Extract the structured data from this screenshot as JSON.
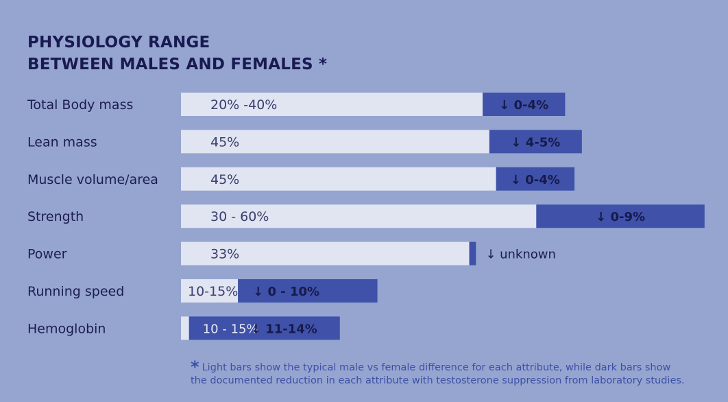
{
  "title": {
    "line1": "PHYSIOLOGY RANGE",
    "line2": "BETWEEN MALES AND FEMALES *"
  },
  "footnote": {
    "star": "*",
    "line1": "Light bars show the typical male vs female difference for each attribute, while dark bars show",
    "line2": "the documented reduction in each attribute with testosterone suppression from laboratory studies."
  },
  "colors": {
    "background": "#95a5d0",
    "light_bar": "#e1e4f1",
    "dark_bar": "#3f51a8",
    "title": "#1a1a52"
  },
  "chart_data": {
    "type": "bar",
    "orientation": "horizontal",
    "stacked": true,
    "categories": [
      "Total Body mass",
      "Lean mass",
      "Muscle volume/area",
      "Strength",
      "Power",
      "Running speed",
      "Hemoglobin"
    ],
    "light_labels": [
      "20% -40%",
      "45%",
      "45%",
      "30 - 60%",
      "33%",
      "10-15%",
      "10 - 15%"
    ],
    "dark_labels": [
      "↓ 0-4%",
      "↓ 4-5%",
      "↓ 0-4%",
      "↓ 0-9%",
      "↓ unknown",
      "↓ 0 - 10%",
      "↓ 11-14%"
    ],
    "series": [
      {
        "name": "Male vs female difference",
        "values": [
          45,
          46,
          47,
          53,
          43,
          8.5,
          1.2
        ]
      },
      {
        "name": "Reduction with testosterone suppression",
        "values": [
          12.3,
          13.8,
          11.7,
          25.1,
          1,
          20.8,
          22.5
        ]
      }
    ],
    "xlim": [
      0,
      80
    ],
    "grid": false,
    "legend": "none"
  }
}
